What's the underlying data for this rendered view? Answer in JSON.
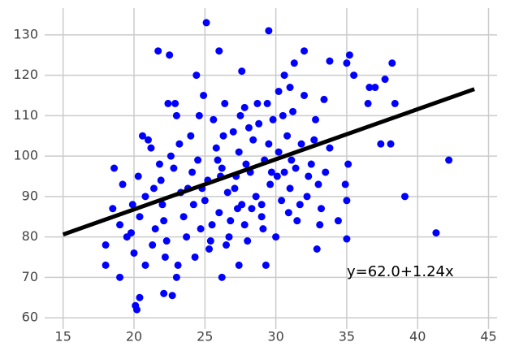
{
  "chart_data": {
    "type": "scatter",
    "series": [
      {
        "color": "blue",
        "x": [
          25.1,
          29.5,
          21.7,
          22.5,
          26,
          32,
          35.2,
          33.8,
          31.3,
          35,
          38.2,
          27.6,
          24.4,
          30.6,
          35.5,
          37.7,
          37,
          36.6,
          31,
          30.2,
          36.5,
          38.4,
          18.6,
          18,
          18,
          19,
          20.1,
          20.2,
          20.4,
          22.1,
          22.7,
          23,
          26.2,
          27.4,
          29.3,
          32.9,
          35,
          41.3,
          42.2,
          39.1,
          37.4,
          38.1,
          35.1,
          35,
          34.4,
          34.9,
          33.1,
          33.5,
          33.8,
          18.5,
          19,
          19.5,
          19.9,
          20,
          20.3,
          20.6,
          21,
          21.2,
          20.8,
          21.5,
          21.9,
          22,
          22.3,
          22.4,
          22.8,
          23,
          23.2,
          23.5,
          23.8,
          24,
          24.2,
          24.5,
          24.7,
          24.9,
          25.2,
          25.4,
          25.6,
          25.8,
          26,
          26.2,
          26.4,
          26.6,
          26.8,
          27,
          27.2,
          27.4,
          27.6,
          27.8,
          28,
          28.2,
          28.4,
          28.6,
          28.8,
          29,
          29.2,
          29.4,
          29.6,
          29.8,
          30,
          30.2,
          30.4,
          30.6,
          30.8,
          31,
          31.2,
          31.5,
          31.8,
          32,
          32.2,
          32.5,
          32.8,
          33,
          33.2,
          33.4,
          19.2,
          20.4,
          21.4,
          22.1,
          22.6,
          23.3,
          23.7,
          24.1,
          24.6,
          25,
          25.5,
          25.9,
          26.3,
          26.7,
          27.1,
          27.5,
          27.9,
          28.3,
          28.7,
          29.1,
          29.5,
          30.1,
          30.5,
          31.1,
          31.7,
          32.3,
          20.8,
          21.3,
          22.2,
          23.1,
          24.3,
          25.3,
          26.5,
          27.8,
          29,
          30.9,
          21.8,
          22.9,
          24.8,
          26.1,
          27.3,
          28.1,
          29.7,
          31.4,
          32.7,
          19.8
        ],
        "values": [
          133,
          131,
          126,
          125,
          126,
          126,
          125,
          123.5,
          123,
          123,
          123,
          121,
          120,
          120,
          120,
          119,
          117,
          117,
          117,
          116,
          113,
          113,
          97,
          78,
          73,
          70,
          63,
          62,
          65,
          66,
          65.5,
          70,
          70,
          73,
          73,
          77,
          79.5,
          81,
          99,
          90,
          103,
          103,
          98,
          89,
          84,
          93,
          83,
          96,
          102,
          87,
          83,
          80,
          88,
          76,
          95,
          105,
          104,
          102,
          90,
          82,
          94,
          88,
          79,
          113,
          97,
          110,
          103,
          85,
          92,
          105,
          88,
          99,
          82,
          115,
          94,
          79,
          109,
          102,
          86,
          97,
          113,
          91,
          84,
          106,
          95,
          101,
          88,
          112,
          79,
          96,
          104,
          90,
          108,
          85,
          99,
          113,
          93,
          109,
          80,
          101,
          89,
          96,
          105,
          92,
          111,
          84,
          103,
          115,
          90,
          98,
          109,
          93,
          87,
          114,
          93,
          85,
          92,
          84,
          100,
          91,
          80,
          96,
          110,
          89,
          83,
          99,
          105,
          80,
          92,
          110,
          98,
          87,
          113,
          82,
          103,
          95,
          110,
          99,
          88,
          95,
          73,
          78,
          75,
          73,
          75,
          77,
          78,
          83,
          88,
          86,
          98,
          113,
          92,
          95,
          87,
          107,
          96,
          97,
          104,
          81
        ]
      }
    ],
    "fit_line": {
      "color": "black",
      "x": [
        15,
        44
      ],
      "values": [
        80.6,
        116.56
      ]
    },
    "annotation": "y=62.0+1.24x",
    "xlim": [
      13.7,
      45.6
    ],
    "ylim": [
      57.2,
      136.6
    ],
    "xticks": [
      15,
      20,
      25,
      30,
      35,
      40,
      45
    ],
    "yticks": [
      60,
      70,
      80,
      90,
      100,
      110,
      120,
      130
    ],
    "grid": true
  }
}
